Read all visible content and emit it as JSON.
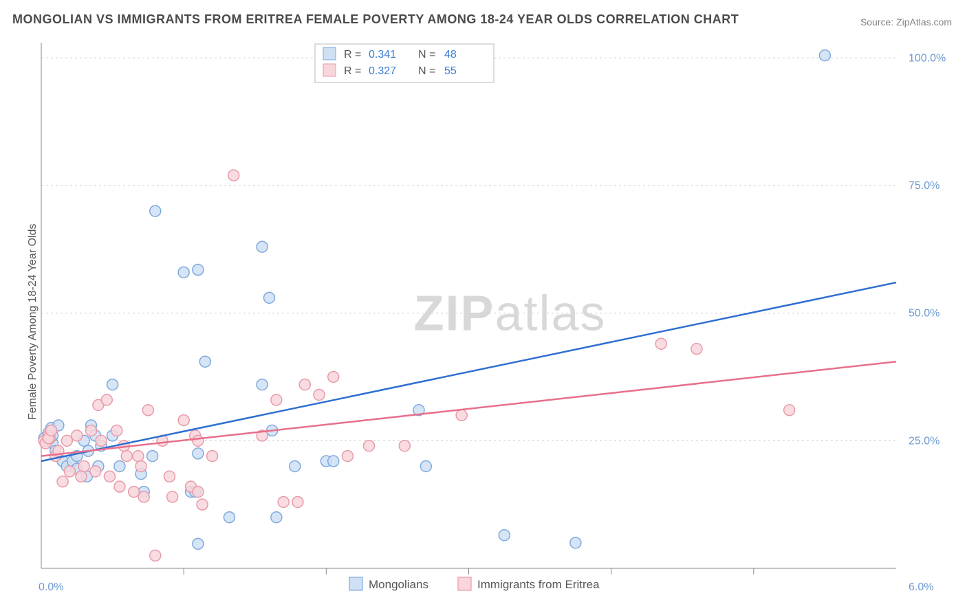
{
  "title": "MONGOLIAN VS IMMIGRANTS FROM ERITREA FEMALE POVERTY AMONG 18-24 YEAR OLDS CORRELATION CHART",
  "source": "Source: ZipAtlas.com",
  "y_axis_label": "Female Poverty Among 18-24 Year Olds",
  "watermark": "ZIPatlas",
  "chart": {
    "type": "scatter",
    "xlim": [
      0,
      6
    ],
    "ylim": [
      0,
      103
    ],
    "x_tick_left": "0.0%",
    "x_tick_right": "6.0%",
    "x_minor_ticks": [
      1,
      2,
      3,
      4,
      5
    ],
    "y_ticks": [
      {
        "v": 25,
        "label": "25.0%"
      },
      {
        "v": 50,
        "label": "50.0%"
      },
      {
        "v": 75,
        "label": "75.0%"
      },
      {
        "v": 100,
        "label": "100.0%"
      }
    ],
    "background_color": "#ffffff",
    "grid_color": "#cccccc",
    "marker_radius": 8,
    "marker_stroke_width": 1.5,
    "line_width": 2.5,
    "series": [
      {
        "name": "Mongolians",
        "fill": "#cfe0f4",
        "stroke": "#7fa9dd",
        "line_color": "#2f6fd0",
        "R": "0.341",
        "N": "48",
        "trend": {
          "x1": 0,
          "y1": 21,
          "x2": 6,
          "y2": 56
        },
        "points": [
          [
            0.02,
            25.5
          ],
          [
            0.05,
            25
          ],
          [
            0.05,
            26.5
          ],
          [
            0.08,
            24.5
          ],
          [
            0.08,
            26
          ],
          [
            0.07,
            27.5
          ],
          [
            0.1,
            23
          ],
          [
            0.12,
            28
          ],
          [
            0.15,
            21
          ],
          [
            0.18,
            20
          ],
          [
            0.22,
            21
          ],
          [
            0.25,
            19.5
          ],
          [
            0.25,
            22
          ],
          [
            0.3,
            25
          ],
          [
            0.33,
            23
          ],
          [
            0.32,
            18
          ],
          [
            0.35,
            28
          ],
          [
            0.38,
            26
          ],
          [
            0.4,
            20
          ],
          [
            0.42,
            24
          ],
          [
            0.5,
            26
          ],
          [
            0.55,
            20
          ],
          [
            0.5,
            36
          ],
          [
            0.8,
            70
          ],
          [
            0.7,
            18.5
          ],
          [
            0.72,
            15
          ],
          [
            0.78,
            22
          ],
          [
            1.0,
            58
          ],
          [
            1.05,
            15
          ],
          [
            1.08,
            15
          ],
          [
            1.1,
            22.5
          ],
          [
            1.1,
            58.5
          ],
          [
            1.1,
            4.8
          ],
          [
            1.15,
            40.5
          ],
          [
            1.32,
            10
          ],
          [
            1.55,
            36
          ],
          [
            1.55,
            63
          ],
          [
            1.6,
            53
          ],
          [
            1.62,
            27
          ],
          [
            1.78,
            20
          ],
          [
            1.65,
            10
          ],
          [
            2.0,
            21
          ],
          [
            2.05,
            21
          ],
          [
            2.65,
            31
          ],
          [
            2.7,
            20
          ],
          [
            3.25,
            6.5
          ],
          [
            3.75,
            5
          ],
          [
            5.5,
            100.5
          ]
        ]
      },
      {
        "name": "Immigrants from Eritrea",
        "fill": "#f8d6dc",
        "stroke": "#e89aa8",
        "line_color": "#e86f8a",
        "R": "0.327",
        "N": "55",
        "trend": {
          "x1": 0,
          "y1": 22,
          "x2": 6,
          "y2": 40.5
        },
        "points": [
          [
            0.02,
            25
          ],
          [
            0.03,
            24.5
          ],
          [
            0.05,
            26
          ],
          [
            0.06,
            25.5
          ],
          [
            0.05,
            25.5
          ],
          [
            0.07,
            27
          ],
          [
            0.1,
            22
          ],
          [
            0.12,
            23
          ],
          [
            0.15,
            17
          ],
          [
            0.18,
            25
          ],
          [
            0.2,
            19
          ],
          [
            0.25,
            26
          ],
          [
            0.28,
            18
          ],
          [
            0.3,
            20
          ],
          [
            0.35,
            27
          ],
          [
            0.38,
            19
          ],
          [
            0.4,
            32
          ],
          [
            0.42,
            25
          ],
          [
            0.46,
            33
          ],
          [
            0.48,
            18
          ],
          [
            0.55,
            16
          ],
          [
            0.53,
            27
          ],
          [
            0.58,
            24
          ],
          [
            0.6,
            22
          ],
          [
            0.65,
            15
          ],
          [
            0.68,
            22
          ],
          [
            0.7,
            20
          ],
          [
            0.72,
            14
          ],
          [
            0.75,
            31
          ],
          [
            0.8,
            2.5
          ],
          [
            0.85,
            25
          ],
          [
            0.9,
            18
          ],
          [
            0.92,
            14
          ],
          [
            1.0,
            29
          ],
          [
            1.05,
            16
          ],
          [
            1.08,
            26
          ],
          [
            1.1,
            25
          ],
          [
            1.13,
            12.5
          ],
          [
            1.1,
            15
          ],
          [
            1.2,
            22
          ],
          [
            1.35,
            77
          ],
          [
            1.55,
            26
          ],
          [
            1.65,
            33
          ],
          [
            1.7,
            13
          ],
          [
            1.8,
            13
          ],
          [
            1.85,
            36
          ],
          [
            1.95,
            34
          ],
          [
            2.05,
            37.5
          ],
          [
            2.15,
            22
          ],
          [
            2.3,
            24
          ],
          [
            2.55,
            24
          ],
          [
            2.95,
            30
          ],
          [
            4.35,
            44
          ],
          [
            4.6,
            43
          ],
          [
            5.25,
            31
          ]
        ]
      }
    ]
  },
  "legend_top": {
    "R_label": "R =",
    "N_label": "N ="
  },
  "legend_bottom": {
    "swatch_size": 19
  }
}
